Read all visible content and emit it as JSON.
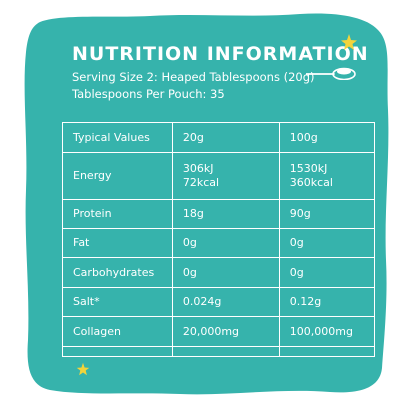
{
  "colors": {
    "panel": "#36b3ac",
    "text": "#ffffff",
    "star": "#f2d43b"
  },
  "icons": [
    "spoon-icon",
    "star-icon"
  ],
  "header": {
    "title": "NUTRITION INFORMATION",
    "serving_size": "Serving Size 2: Heaped Tablespoons (20g)",
    "per_pouch": "Tablespoons Per Pouch: 35"
  },
  "table": {
    "columns": [
      "Typical Values",
      "20g",
      "100g"
    ],
    "rows": [
      {
        "label": "Energy",
        "col20": [
          "306kJ",
          "72kcal"
        ],
        "col100": [
          "1530kJ",
          "360kcal"
        ]
      },
      {
        "label": "Protein",
        "col20": [
          "18g"
        ],
        "col100": [
          "90g"
        ]
      },
      {
        "label": "Fat",
        "col20": [
          "0g"
        ],
        "col100": [
          "0g"
        ]
      },
      {
        "label": "Carbohydrates",
        "col20": [
          "0g"
        ],
        "col100": [
          "0g"
        ]
      },
      {
        "label": "Salt*",
        "col20": [
          "0.024g"
        ],
        "col100": [
          "0.12g"
        ]
      },
      {
        "label": "Collagen",
        "col20": [
          "20,000mg"
        ],
        "col100": [
          "100,000mg"
        ]
      }
    ]
  }
}
